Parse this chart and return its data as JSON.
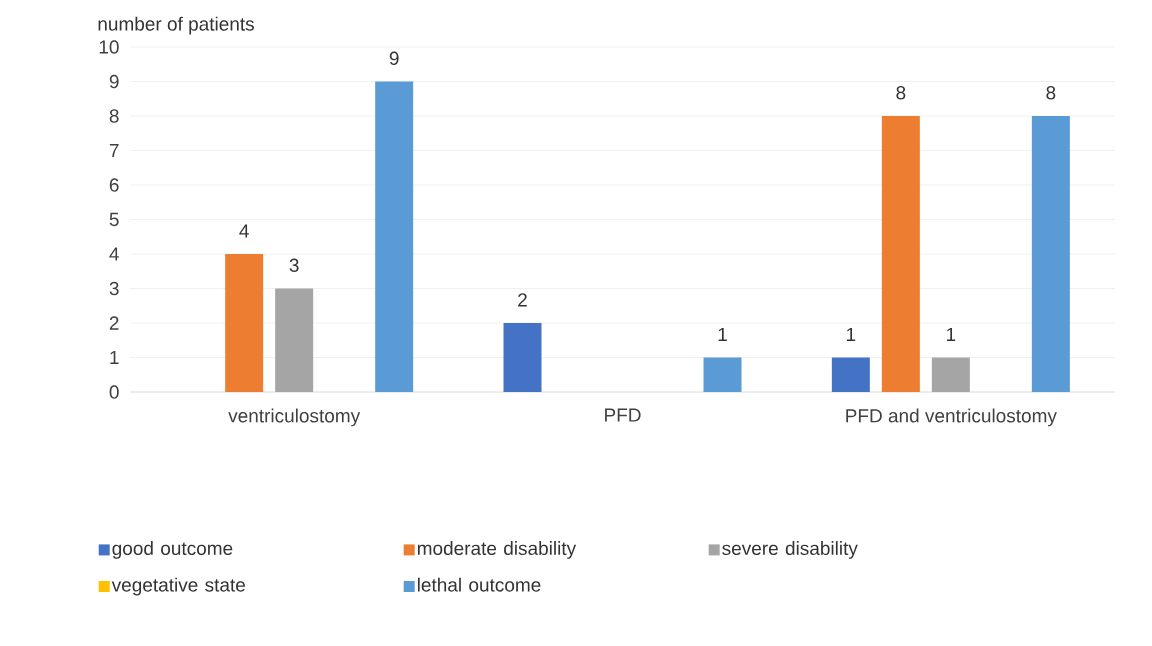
{
  "chart_data": {
    "type": "bar",
    "ylabel": "number of patients",
    "categories": [
      "ventriculostomy",
      "PFD",
      "PFD and ventriculostomy"
    ],
    "series": [
      {
        "name": "good outcome",
        "color": "#4472c4",
        "values": [
          0,
          2,
          1
        ],
        "value_labels": [
          null,
          "2",
          "1"
        ]
      },
      {
        "name": "moderate disability",
        "color": "#ed7d31",
        "values": [
          4,
          0,
          8
        ],
        "value_labels": [
          "4",
          null,
          "8"
        ]
      },
      {
        "name": "severe disability",
        "color": "#a5a5a5",
        "values": [
          3,
          0,
          1
        ],
        "value_labels": [
          "3",
          null,
          "1"
        ]
      },
      {
        "name": "vegetative state",
        "color": "#ffc000",
        "values": [
          0,
          0,
          0
        ],
        "value_labels": [
          null,
          null,
          null
        ]
      },
      {
        "name": "lethal outcome",
        "color": "#5b9bd5",
        "values": [
          9,
          1,
          8
        ],
        "value_labels": [
          "9",
          "1",
          "8"
        ]
      }
    ],
    "ylim": [
      0,
      10
    ],
    "yticks": [
      0,
      1,
      2,
      3,
      4,
      5,
      6,
      7,
      8,
      9,
      10
    ],
    "grid": "y",
    "legend": "bottom"
  }
}
